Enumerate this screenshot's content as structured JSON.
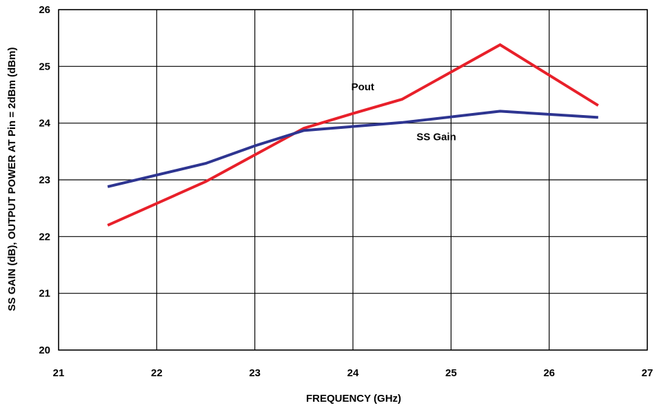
{
  "chart_data": {
    "type": "line",
    "title": "",
    "xlabel": "FREQUENCY (GHz)",
    "ylabel": "SS GAIN (dB), OUTPUT POWER AT Pin = 2dBm (dBm)",
    "xlim": [
      21,
      27
    ],
    "ylim": [
      20,
      26
    ],
    "xticks": [
      "21",
      "22",
      "23",
      "24",
      "25",
      "26",
      "27"
    ],
    "yticks": [
      "20",
      "21",
      "22",
      "23",
      "24",
      "25",
      "26"
    ],
    "grid": true,
    "legend": "none",
    "series": [
      {
        "name": "Pout",
        "color": "#e8202a",
        "x": [
          21.5,
          22.5,
          23.5,
          24.0,
          24.5,
          25.5,
          26.5
        ],
        "y": [
          22.2,
          22.97,
          23.91,
          24.17,
          24.42,
          25.38,
          24.31
        ]
      },
      {
        "name": "SS Gain",
        "color": "#2e3591",
        "x": [
          21.5,
          22.5,
          23.0,
          23.5,
          24.5,
          25.5,
          26.5
        ],
        "y": [
          22.88,
          23.29,
          23.6,
          23.87,
          24.01,
          24.21,
          24.1
        ]
      }
    ]
  }
}
